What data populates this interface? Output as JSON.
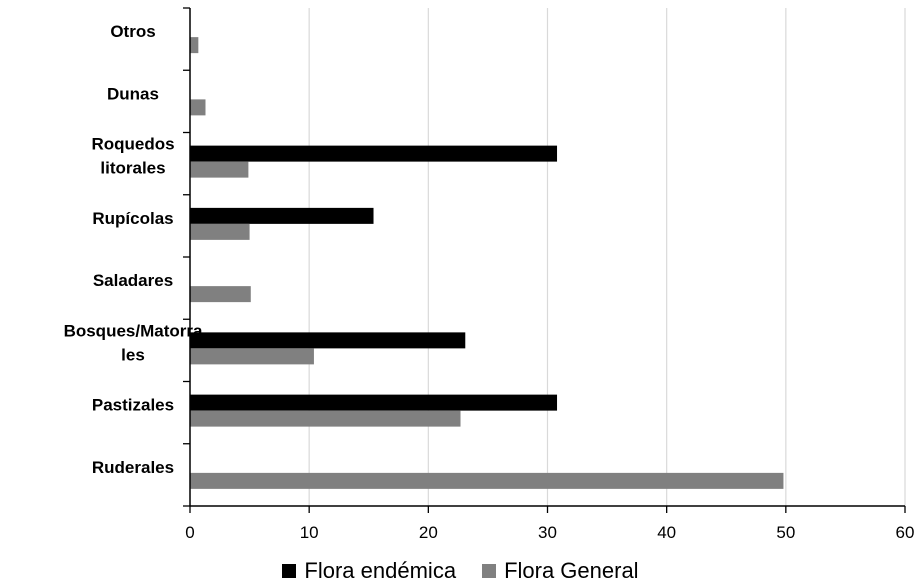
{
  "chart_data": {
    "type": "bar",
    "orientation": "horizontal",
    "categories": [
      [
        "Ruderales"
      ],
      [
        "Pastizales"
      ],
      [
        "Bosques/Matorra",
        "les"
      ],
      [
        "Saladares"
      ],
      [
        "Rupícolas"
      ],
      [
        "Roquedos",
        "litorales"
      ],
      [
        "Dunas"
      ],
      [
        "Otros"
      ]
    ],
    "series": [
      {
        "name": "Flora endémica",
        "color": "#000000",
        "values": [
          0,
          30.8,
          23.1,
          0,
          15.4,
          30.8,
          0,
          0
        ]
      },
      {
        "name": "Flora General",
        "color": "#808080",
        "values": [
          49.8,
          22.7,
          10.4,
          5.1,
          5.0,
          4.9,
          1.3,
          0.7
        ]
      }
    ],
    "xlim": [
      0,
      60
    ],
    "xticks": [
      "0",
      "10",
      "20",
      "30",
      "40",
      "50",
      "60"
    ],
    "grid": "vertical",
    "legend_position": "bottom"
  }
}
